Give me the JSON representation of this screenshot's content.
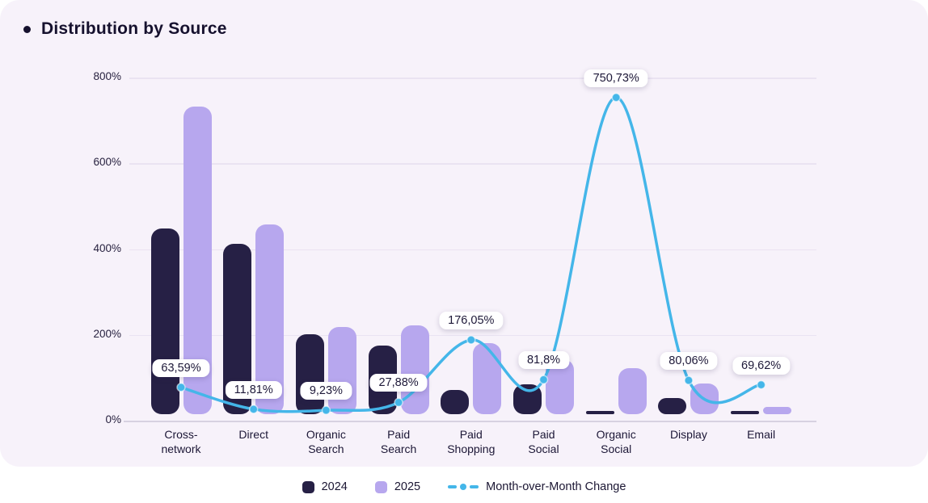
{
  "title": "Distribution by Source",
  "colors": {
    "bar_2024": "#262045",
    "bar_2025": "#b7a7ee",
    "line": "#44b6e9",
    "panel_bg": "#f7f2fa",
    "text_dark": "#16112e"
  },
  "legend": [
    {
      "label": "2024",
      "type": "square",
      "color": "#262045"
    },
    {
      "label": "2025",
      "type": "square",
      "color": "#b7a7ee"
    },
    {
      "label": "Month-over-Month Change",
      "type": "dashed-line",
      "color": "#44b6e9"
    }
  ],
  "chart_data": {
    "type": "bar",
    "subtype": "grouped-bars-with-line-overlay",
    "title": "Distribution by Source",
    "categories": [
      "Cross-\nnetwork",
      "Direct",
      "Organic\nSearch",
      "Paid\nSearch",
      "Paid\nShopping",
      "Paid\nSocial",
      "Organic\nSocial",
      "Display",
      "Email"
    ],
    "category_slugs": [
      "cross-network",
      "direct",
      "organic-search",
      "paid-search",
      "paid-shopping",
      "paid-social",
      "organic-social",
      "display",
      "email"
    ],
    "series": [
      {
        "name": "2024",
        "type": "bar",
        "color": "#262045",
        "values": [
          440,
          403,
          190,
          162,
          57,
          70,
          8,
          38,
          8
        ]
      },
      {
        "name": "2025",
        "type": "bar",
        "color": "#b7a7ee",
        "values": [
          730,
          450,
          207,
          210,
          168,
          130,
          109,
          72,
          18
        ]
      },
      {
        "name": "Month-over-Month Change",
        "type": "line",
        "color": "#44b6e9",
        "values": [
          63.59,
          11.81,
          9.23,
          27.88,
          176.05,
          81.8,
          750.73,
          80.06,
          69.62
        ],
        "point_labels": [
          "63,59%",
          "11,81%",
          "9,23%",
          "27,88%",
          "176,05%",
          "81,8%",
          "750,73%",
          "80,06%",
          "69,62%"
        ]
      }
    ],
    "y_axis": {
      "ticks": [
        "0%",
        "200%",
        "400%",
        "600%",
        "800%"
      ],
      "tick_values": [
        0,
        200,
        400,
        600,
        800
      ]
    },
    "ylim": [
      0,
      800
    ],
    "xlabel": "",
    "ylabel": "",
    "grid": true,
    "legend_position": "bottom"
  }
}
